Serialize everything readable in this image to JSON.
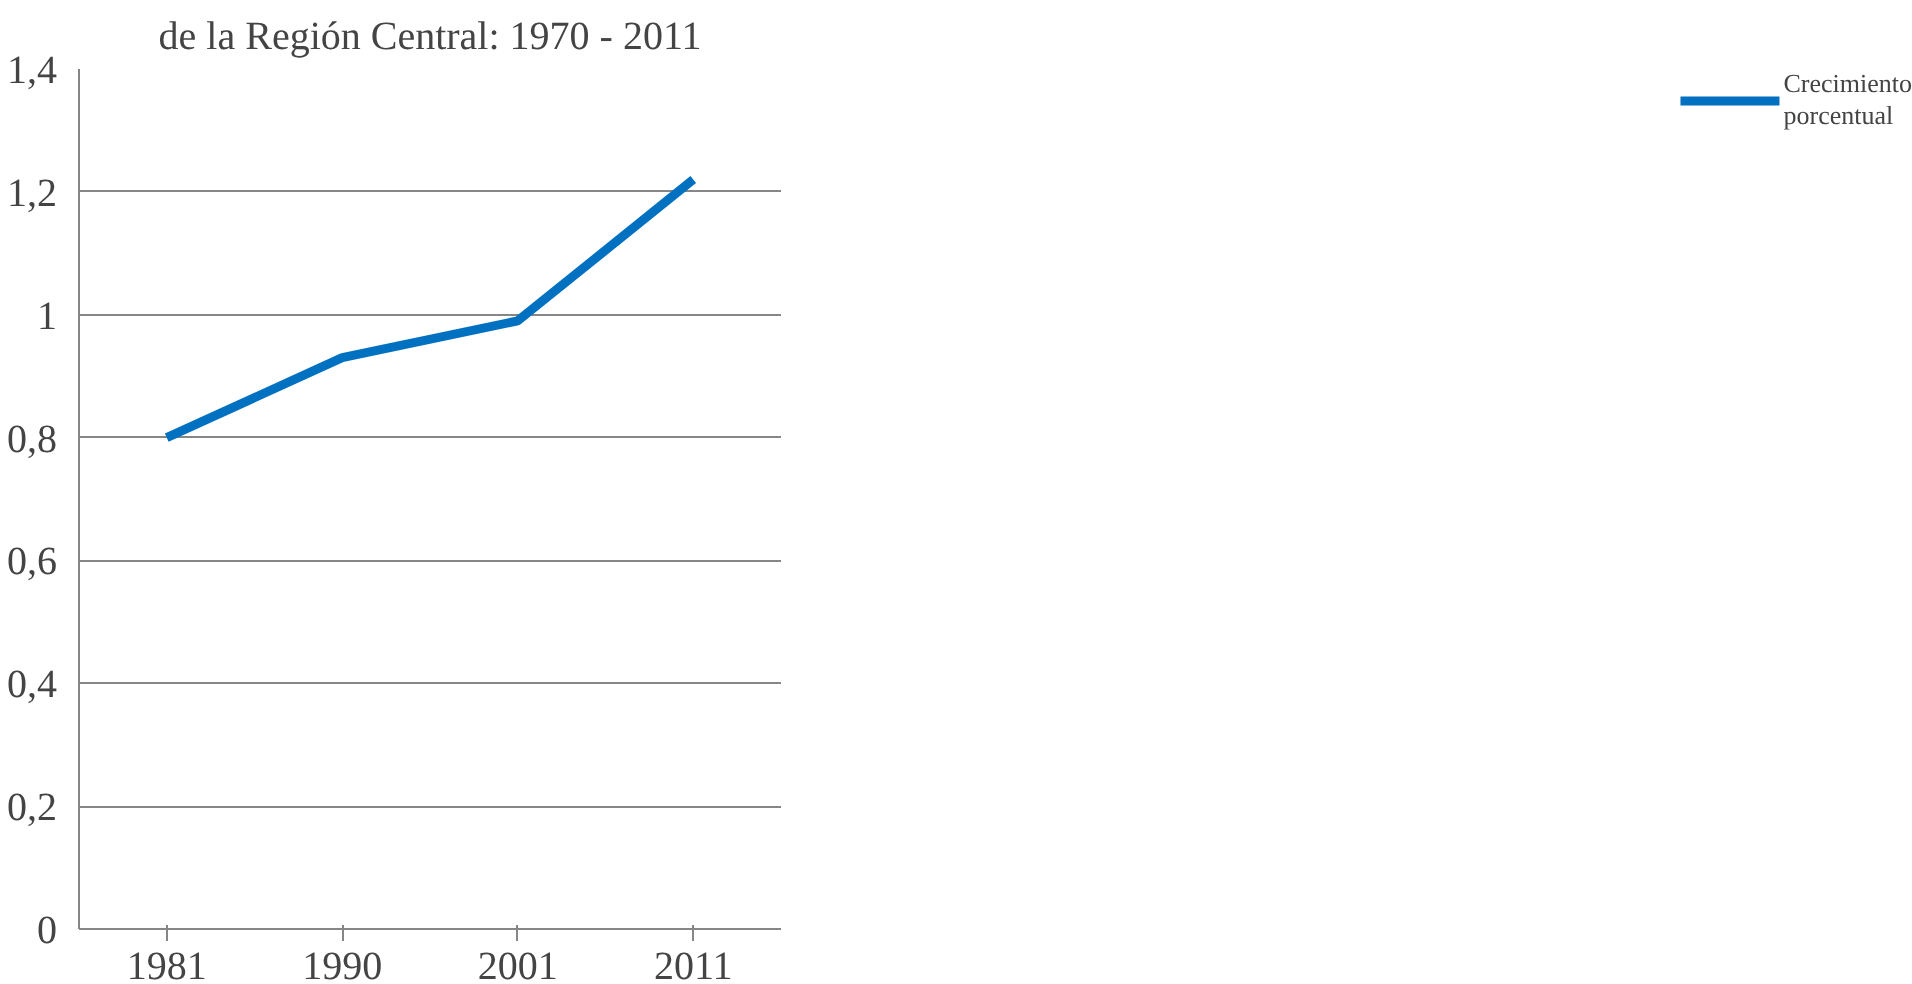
{
  "chart_data": {
    "type": "line",
    "title": "de la Región Central: 1970 - 2011",
    "categories": [
      "1981",
      "1990",
      "2001",
      "2011"
    ],
    "series": [
      {
        "name": "Crecimiento porcentual",
        "color": "#0070c0",
        "values": [
          0.8,
          0.93,
          0.99,
          1.22
        ]
      }
    ],
    "ylim": [
      0,
      1.4
    ],
    "yticks": [
      0,
      {
        "value": 0.2,
        "label": "0,2"
      },
      {
        "value": 0.4,
        "label": "0,4"
      },
      {
        "value": 0.6,
        "label": "0,6"
      },
      {
        "value": 0.8,
        "label": "0,8"
      },
      1,
      {
        "value": 1.2,
        "label": "1,2"
      },
      {
        "value": 1.4,
        "label": "1,4"
      }
    ],
    "grid": "y",
    "legend": "right",
    "marker": "none",
    "line_style": "solid"
  }
}
